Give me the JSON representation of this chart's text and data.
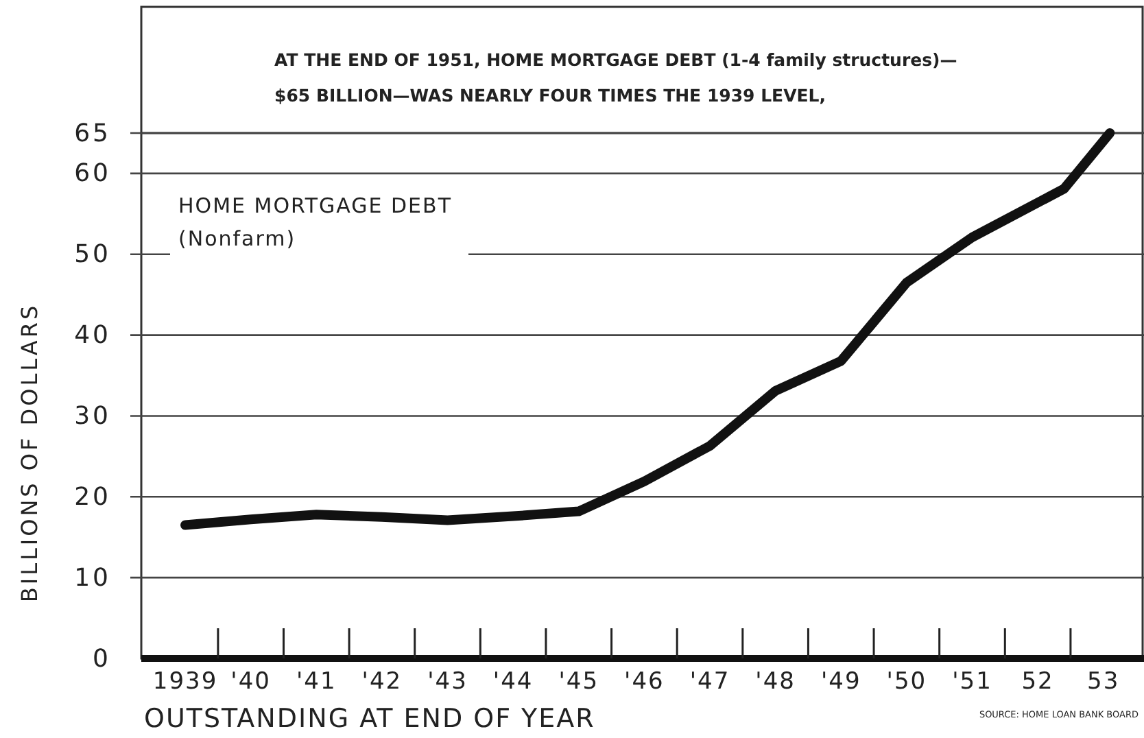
{
  "chart_data": {
    "type": "line",
    "title": "AT THE END OF 1951, HOME MORTGAGE DEBT (1-4 family structures)—$65 BILLION—WAS NEARLY FOUR TIMES THE 1939 LEVEL,",
    "xlabel": "OUTSTANDING AT END OF YEAR",
    "ylabel": "BILLIONS OF DOLLARS",
    "annotations": [
      "SOURCE: HOME LOAN BANK BOARD"
    ],
    "x": [
      1939,
      1940,
      1941,
      1942,
      1943,
      1944,
      1945,
      1946,
      1947,
      1948,
      1949,
      1950,
      1951,
      1952.4,
      1953.1
    ],
    "series": [
      {
        "name": "HOME MORTGAGE DEBT (Nonfarm)",
        "color": "#111111",
        "values": [
          16.5,
          17.2,
          17.8,
          17.5,
          17.1,
          17.6,
          18.2,
          21.9,
          26.3,
          33.1,
          36.8,
          46.5,
          52.1,
          58.1,
          65
        ]
      }
    ],
    "xlim": [
      1938.33,
      1953.62
    ],
    "ylim": [
      0,
      65
    ],
    "xticks": [
      {
        "value": 1939,
        "label": "1939"
      },
      {
        "value": 1940,
        "label": "'40"
      },
      {
        "value": 1941,
        "label": "'41"
      },
      {
        "value": 1942,
        "label": "'42"
      },
      {
        "value": 1943,
        "label": "'43"
      },
      {
        "value": 1944,
        "label": "'44"
      },
      {
        "value": 1945,
        "label": "'45"
      },
      {
        "value": 1946,
        "label": "'46"
      },
      {
        "value": 1947,
        "label": "'47"
      },
      {
        "value": 1948,
        "label": "'48"
      },
      {
        "value": 1949,
        "label": "'49"
      },
      {
        "value": 1950,
        "label": "'50"
      },
      {
        "value": 1951,
        "label": "'51"
      },
      {
        "value": 1952,
        "label": "52"
      },
      {
        "value": 1953,
        "label": "53"
      }
    ],
    "yticks": [
      0,
      10,
      20,
      30,
      40,
      50,
      60,
      65
    ],
    "grid": "y",
    "legend": "top left",
    "marker": "none",
    "line_style": "solid"
  }
}
